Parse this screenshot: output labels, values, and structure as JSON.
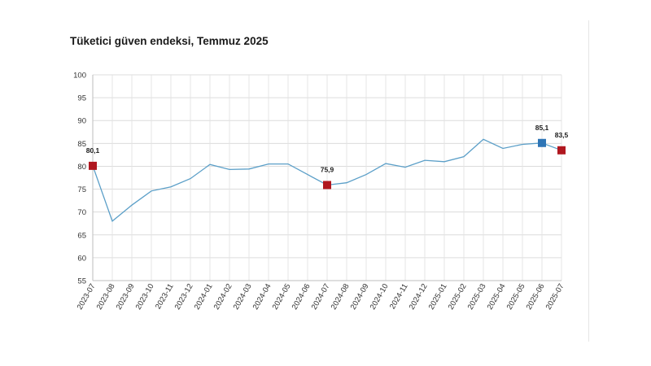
{
  "chart_data": {
    "type": "line",
    "title": "Tüketici güven endeksi, Temmuz 2025",
    "xlabel": "",
    "ylabel": "",
    "ylim": [
      55,
      100
    ],
    "yticks": [
      "55",
      "60",
      "65",
      "70",
      "75",
      "80",
      "85",
      "90",
      "95",
      "100"
    ],
    "grid": true,
    "categories": [
      "2023-07",
      "2023-08",
      "2023-09",
      "2023-10",
      "2023-11",
      "2023-12",
      "2024-01",
      "2024-02",
      "2024-03",
      "2024-04",
      "2024-05",
      "2024-06",
      "2024-07",
      "2024-08",
      "2024-09",
      "2024-10",
      "2024-11",
      "2024-12",
      "2025-01",
      "2025-02",
      "2025-03",
      "2025-04",
      "2025-05",
      "2025-06",
      "2025-07"
    ],
    "series": [
      {
        "values": [
          80.1,
          68.0,
          71.5,
          74.6,
          75.5,
          77.3,
          80.4,
          79.3,
          79.4,
          80.5,
          80.5,
          78.2,
          75.9,
          76.4,
          78.2,
          80.6,
          79.8,
          81.3,
          81.0,
          82.1,
          85.9,
          83.9,
          84.8,
          85.1,
          83.5
        ],
        "color": "#5b9fc8"
      }
    ],
    "highlights": [
      {
        "index": 0,
        "label": "80,1",
        "color": "#b0171f"
      },
      {
        "index": 12,
        "label": "75,9",
        "color": "#b0171f"
      },
      {
        "index": 23,
        "label": "85,1",
        "color": "#2e75b6"
      },
      {
        "index": 24,
        "label": "83,5",
        "color": "#b0171f"
      }
    ]
  }
}
